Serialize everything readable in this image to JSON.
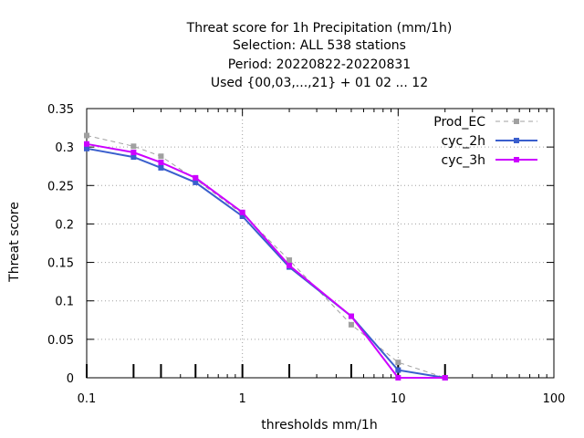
{
  "chart_data": {
    "type": "line",
    "title_lines": [
      "Threat score  for 1h Precipitation (mm/1h)",
      "Selection: ALL    538 stations",
      "Period: 20220822-20220831",
      "Used {00,03,...,21} + 01 02 ... 12"
    ],
    "xlabel": "thresholds mm/1h",
    "ylabel": "Threat score",
    "x_scale": "log",
    "xlim": [
      0.1,
      100
    ],
    "ylim": [
      0,
      0.35
    ],
    "x_ticks": [
      0.1,
      1,
      10,
      100
    ],
    "x_tick_labels": [
      "0.1",
      "1",
      "10",
      "100"
    ],
    "y_ticks": [
      0,
      0.05,
      0.1,
      0.15,
      0.2,
      0.25,
      0.3,
      0.35
    ],
    "y_tick_labels": [
      "0",
      "0.05",
      "0.1",
      "0.15",
      "0.2",
      "0.25",
      "0.3",
      "0.35"
    ],
    "threshold_marks": [
      0.1,
      0.2,
      0.3,
      0.5,
      1,
      2,
      5,
      10,
      20
    ],
    "grid": true,
    "legend_position": "top-right",
    "x": [
      0.1,
      0.2,
      0.3,
      0.5,
      1,
      2,
      5,
      10,
      20
    ],
    "series": [
      {
        "name": "Prod_EC",
        "color": "#a0a0a0",
        "dashed": true,
        "values": [
          0.315,
          0.301,
          0.288,
          0.258,
          0.213,
          0.153,
          0.069,
          0.02,
          0.0
        ]
      },
      {
        "name": "cyc_2h",
        "color": "#3a5fcd",
        "dashed": false,
        "values": [
          0.298,
          0.287,
          0.273,
          0.254,
          0.21,
          0.144,
          0.08,
          0.01,
          0.0
        ]
      },
      {
        "name": "cyc_3h",
        "color": "#cc00ff",
        "dashed": false,
        "values": [
          0.304,
          0.293,
          0.28,
          0.26,
          0.215,
          0.146,
          0.08,
          0.0,
          0.0
        ]
      }
    ]
  }
}
